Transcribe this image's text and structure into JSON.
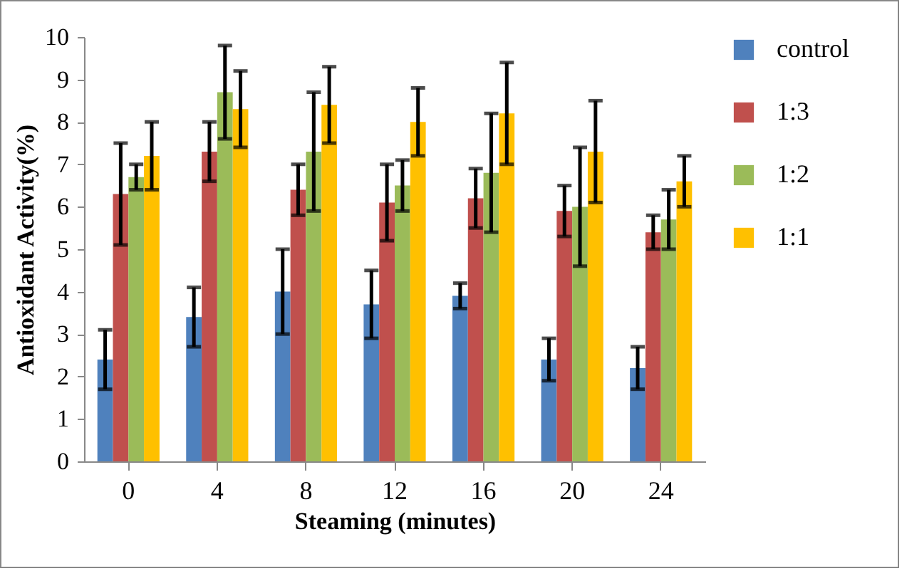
{
  "chart_data": {
    "type": "bar",
    "xlabel": "Steaming (minutes)",
    "ylabel": "Antioxidant Activity(%)",
    "categories": [
      "0",
      "4",
      "8",
      "12",
      "16",
      "20",
      "24"
    ],
    "series": [
      {
        "name": "control",
        "color": "#4f81bd",
        "values": [
          2.4,
          3.4,
          4.0,
          3.7,
          3.9,
          2.4,
          2.2
        ],
        "errors": [
          0.7,
          0.7,
          1.0,
          0.8,
          0.3,
          0.5,
          0.5
        ]
      },
      {
        "name": "1:3",
        "color": "#c0504d",
        "values": [
          6.3,
          7.3,
          6.4,
          6.1,
          6.2,
          5.9,
          5.4
        ],
        "errors": [
          1.2,
          0.7,
          0.6,
          0.9,
          0.7,
          0.6,
          0.4
        ]
      },
      {
        "name": "1:2",
        "color": "#9bbb59",
        "values": [
          6.7,
          8.7,
          7.3,
          6.5,
          6.8,
          6.0,
          5.7
        ],
        "errors": [
          0.3,
          1.1,
          1.4,
          0.6,
          1.4,
          1.4,
          0.7
        ]
      },
      {
        "name": "1:1",
        "color": "#ffc000",
        "values": [
          7.2,
          8.3,
          8.4,
          8.0,
          8.2,
          7.3,
          6.6
        ],
        "errors": [
          0.8,
          0.9,
          0.9,
          0.8,
          1.2,
          1.2,
          0.6
        ]
      }
    ],
    "ylim": [
      0,
      10
    ],
    "yticks": [
      0,
      1,
      2,
      3,
      4,
      5,
      6,
      7,
      8,
      9,
      10
    ],
    "grid": false,
    "legend": "right"
  }
}
